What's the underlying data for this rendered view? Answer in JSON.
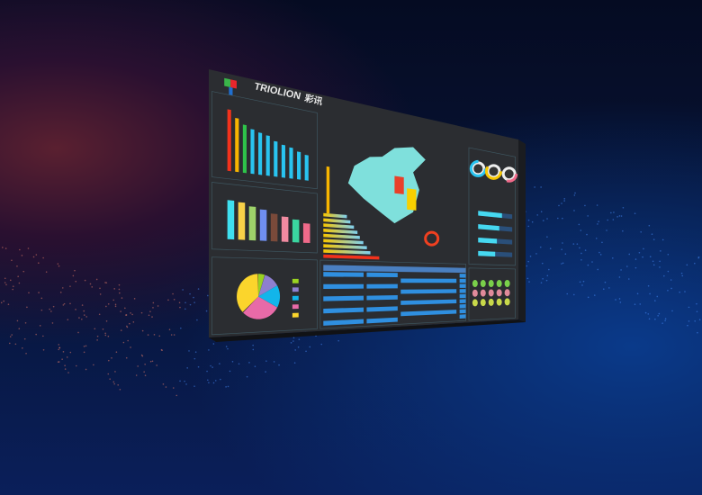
{
  "logo": {
    "brand": "TRIOLION",
    "brand_cn": "彩讯"
  },
  "colors": {
    "screen_bg": "#2b2d31",
    "accent_cyan": "#29c4f0",
    "table_blue": "#2f8fe0",
    "map_fill": "#7fe0dc",
    "red": "#f2321c",
    "orange": "#f7b500",
    "green": "#2ec44a"
  },
  "panels": {
    "top_left_bars": {
      "type": "bar",
      "values": [
        1950,
        1720,
        1550,
        1450,
        1380,
        1330,
        1180,
        1100,
        1050,
        950,
        880
      ],
      "ylim": [
        0,
        2000
      ]
    },
    "mid_left_bars": {
      "type": "bar",
      "values": [
        1750,
        1700,
        1550,
        1450,
        1300,
        1200,
        1100,
        950
      ]
    },
    "pie": {
      "type": "pie",
      "values": [
        5,
        12,
        16,
        30,
        37
      ],
      "colors": [
        "#9ad321",
        "#8e7fd0",
        "#12b5ea",
        "#e86aa8",
        "#fbd52c"
      ]
    },
    "center_hbars": {
      "type": "bar",
      "values": [
        40,
        46,
        52,
        58,
        62,
        68,
        74,
        80,
        95
      ]
    },
    "gauges": [
      {
        "value": 0.75,
        "color": "#29c4f0"
      },
      {
        "value": 0.6,
        "color": "#f7c600"
      },
      {
        "value": 0.3,
        "color": "#f06a8a"
      }
    ],
    "right_hbars": {
      "values": [
        0.7,
        0.62,
        0.55,
        0.5
      ]
    },
    "table": {
      "rows": 9
    }
  }
}
